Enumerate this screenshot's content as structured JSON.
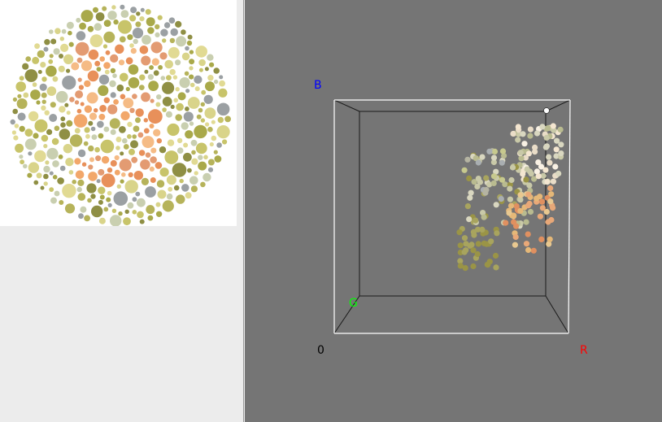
{
  "window": {
    "background": "#ececec"
  },
  "image_panel": {
    "plate_type": "color-blindness-test-plate",
    "palette": {
      "background_dots": [
        "#c8c46a",
        "#a9a94a",
        "#d9d48a",
        "#8f8f44",
        "#b6b35a",
        "#e1da93",
        "#9ba0a3",
        "#c9cfb0"
      ],
      "figure_dots": [
        "#f2a76a",
        "#e8905a",
        "#f5bb85",
        "#e39b72"
      ]
    }
  },
  "color_space_view": {
    "background": "#757575",
    "axis_labels": {
      "origin": "0",
      "r": "R",
      "g": "G",
      "b": "B"
    },
    "axis_colors": {
      "origin": "#000000",
      "r": "#ff0000",
      "g": "#00ff00",
      "b": "#0000ff"
    },
    "point_cloud": {
      "description_palette": [
        "#f4e6d0",
        "#f9f1e4",
        "#eaddc8",
        "#d9d7c0",
        "#c9c9a8",
        "#b9bb90",
        "#a8a45e",
        "#9a9446",
        "#e8c890",
        "#e5b878",
        "#e8a878",
        "#e09060",
        "#c7c98e",
        "#b5b4a2",
        "#a9aeb1"
      ]
    }
  }
}
